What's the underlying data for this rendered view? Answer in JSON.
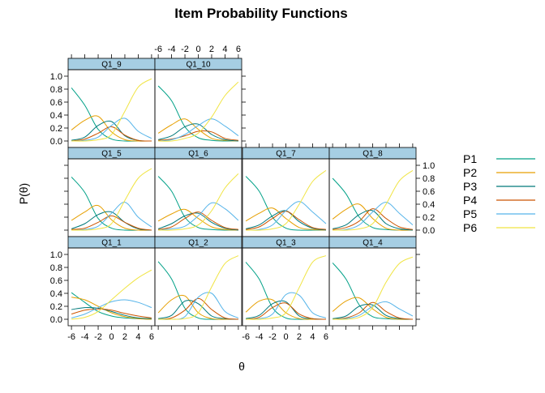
{
  "chart_data": {
    "type": "line",
    "title": "Item Probability Functions",
    "xlabel": "θ",
    "ylabel": "P(θ)",
    "xlim": [
      -6.5,
      6.5
    ],
    "ylim": [
      -0.1,
      1.1
    ],
    "xticks": [
      -6,
      -4,
      -2,
      0,
      2,
      4,
      6
    ],
    "yticks": [
      0.0,
      0.2,
      0.4,
      0.6,
      0.8,
      1.0
    ],
    "legend": {
      "position": "right",
      "entries": [
        {
          "label": "P1",
          "color": "#00A087"
        },
        {
          "label": "P2",
          "color": "#E69F00"
        },
        {
          "label": "P3",
          "color": "#00797A"
        },
        {
          "label": "P4",
          "color": "#CC5500"
        },
        {
          "label": "P5",
          "color": "#56B4E9"
        },
        {
          "label": "P6",
          "color": "#F0E442"
        }
      ]
    },
    "x": [
      -6,
      -4,
      -2,
      0,
      2,
      4,
      6
    ],
    "panels": [
      {
        "name": "Q1_9",
        "series": [
          {
            "values": [
              0.82,
              0.55,
              0.18,
              0.03,
              0.0,
              0.0,
              0.0
            ]
          },
          {
            "values": [
              0.17,
              0.32,
              0.38,
              0.14,
              0.02,
              0.0,
              0.0
            ]
          },
          {
            "values": [
              0.01,
              0.06,
              0.24,
              0.3,
              0.08,
              0.01,
              0.0
            ]
          },
          {
            "values": [
              0.0,
              0.03,
              0.12,
              0.22,
              0.09,
              0.01,
              0.0
            ]
          },
          {
            "values": [
              0.0,
              0.01,
              0.06,
              0.24,
              0.35,
              0.15,
              0.04
            ]
          },
          {
            "values": [
              0.0,
              0.0,
              0.02,
              0.1,
              0.46,
              0.83,
              0.96
            ]
          }
        ]
      },
      {
        "name": "Q1_10",
        "series": [
          {
            "values": [
              0.85,
              0.62,
              0.22,
              0.05,
              0.01,
              0.0,
              0.0
            ]
          },
          {
            "values": [
              0.12,
              0.25,
              0.34,
              0.18,
              0.04,
              0.01,
              0.0
            ]
          },
          {
            "values": [
              0.02,
              0.08,
              0.22,
              0.26,
              0.1,
              0.02,
              0.0
            ]
          },
          {
            "values": [
              0.01,
              0.03,
              0.08,
              0.15,
              0.14,
              0.04,
              0.01
            ]
          },
          {
            "values": [
              0.0,
              0.02,
              0.1,
              0.24,
              0.34,
              0.23,
              0.08
            ]
          },
          {
            "values": [
              0.0,
              0.0,
              0.04,
              0.12,
              0.37,
              0.7,
              0.91
            ]
          }
        ]
      },
      {
        "name": "Q1_5",
        "series": [
          {
            "values": [
              0.82,
              0.58,
              0.18,
              0.03,
              0.0,
              0.0,
              0.0
            ]
          },
          {
            "values": [
              0.15,
              0.28,
              0.38,
              0.16,
              0.03,
              0.0,
              0.0
            ]
          },
          {
            "values": [
              0.02,
              0.1,
              0.24,
              0.28,
              0.12,
              0.02,
              0.0
            ]
          },
          {
            "values": [
              0.01,
              0.03,
              0.12,
              0.22,
              0.12,
              0.03,
              0.0
            ]
          },
          {
            "values": [
              0.0,
              0.01,
              0.06,
              0.26,
              0.43,
              0.2,
              0.05
            ]
          },
          {
            "values": [
              0.0,
              0.0,
              0.02,
              0.1,
              0.46,
              0.8,
              0.95
            ]
          }
        ]
      },
      {
        "name": "Q1_6",
        "series": [
          {
            "values": [
              0.83,
              0.6,
              0.2,
              0.04,
              0.01,
              0.0,
              0.0
            ]
          },
          {
            "values": [
              0.14,
              0.25,
              0.32,
              0.18,
              0.05,
              0.01,
              0.0
            ]
          },
          {
            "values": [
              0.02,
              0.1,
              0.22,
              0.26,
              0.12,
              0.03,
              0.0
            ]
          },
          {
            "values": [
              0.01,
              0.05,
              0.18,
              0.28,
              0.15,
              0.04,
              0.01
            ]
          },
          {
            "values": [
              0.0,
              0.02,
              0.06,
              0.22,
              0.42,
              0.33,
              0.15
            ]
          },
          {
            "values": [
              0.0,
              0.0,
              0.02,
              0.08,
              0.3,
              0.65,
              0.87
            ]
          }
        ]
      },
      {
        "name": "Q1_7",
        "series": [
          {
            "values": [
              0.83,
              0.6,
              0.2,
              0.03,
              0.0,
              0.0,
              0.0
            ]
          },
          {
            "values": [
              0.14,
              0.26,
              0.34,
              0.18,
              0.04,
              0.01,
              0.0
            ]
          },
          {
            "values": [
              0.02,
              0.08,
              0.22,
              0.3,
              0.13,
              0.03,
              0.0
            ]
          },
          {
            "values": [
              0.01,
              0.05,
              0.18,
              0.29,
              0.16,
              0.04,
              0.01
            ]
          },
          {
            "values": [
              0.0,
              0.01,
              0.08,
              0.3,
              0.44,
              0.28,
              0.1
            ]
          },
          {
            "values": [
              0.0,
              0.0,
              0.02,
              0.1,
              0.4,
              0.75,
              0.92
            ]
          }
        ]
      },
      {
        "name": "Q1_8",
        "series": [
          {
            "values": [
              0.8,
              0.56,
              0.2,
              0.04,
              0.01,
              0.0,
              0.0
            ]
          },
          {
            "values": [
              0.17,
              0.32,
              0.4,
              0.18,
              0.03,
              0.0,
              0.0
            ]
          },
          {
            "values": [
              0.02,
              0.08,
              0.24,
              0.3,
              0.1,
              0.02,
              0.0
            ]
          },
          {
            "values": [
              0.01,
              0.04,
              0.14,
              0.33,
              0.18,
              0.05,
              0.01
            ]
          },
          {
            "values": [
              0.0,
              0.01,
              0.08,
              0.28,
              0.43,
              0.26,
              0.08
            ]
          },
          {
            "values": [
              0.0,
              0.0,
              0.02,
              0.1,
              0.4,
              0.76,
              0.92
            ]
          }
        ]
      },
      {
        "name": "Q1_1",
        "series": [
          {
            "values": [
              0.41,
              0.26,
              0.12,
              0.05,
              0.02,
              0.01,
              0.0
            ]
          },
          {
            "values": [
              0.34,
              0.3,
              0.2,
              0.1,
              0.04,
              0.01,
              0.0
            ]
          },
          {
            "values": [
              0.15,
              0.18,
              0.17,
              0.12,
              0.06,
              0.02,
              0.01
            ]
          },
          {
            "values": [
              0.08,
              0.14,
              0.16,
              0.14,
              0.09,
              0.05,
              0.02
            ]
          },
          {
            "values": [
              0.02,
              0.08,
              0.18,
              0.27,
              0.3,
              0.26,
              0.18
            ]
          },
          {
            "values": [
              0.0,
              0.03,
              0.12,
              0.3,
              0.48,
              0.64,
              0.76
            ]
          }
        ]
      },
      {
        "name": "Q1_2",
        "series": [
          {
            "values": [
              0.89,
              0.62,
              0.17,
              0.02,
              0.0,
              0.0,
              0.0
            ]
          },
          {
            "values": [
              0.1,
              0.3,
              0.36,
              0.1,
              0.01,
              0.0,
              0.0
            ]
          },
          {
            "values": [
              0.01,
              0.06,
              0.28,
              0.24,
              0.05,
              0.01,
              0.0
            ]
          },
          {
            "values": [
              0.0,
              0.02,
              0.14,
              0.32,
              0.15,
              0.02,
              0.0
            ]
          },
          {
            "values": [
              0.0,
              0.0,
              0.04,
              0.34,
              0.4,
              0.12,
              0.02
            ]
          },
          {
            "values": [
              0.0,
              0.0,
              0.01,
              0.1,
              0.5,
              0.86,
              0.98
            ]
          }
        ]
      },
      {
        "name": "Q1_3",
        "series": [
          {
            "values": [
              0.88,
              0.62,
              0.18,
              0.02,
              0.0,
              0.0,
              0.0
            ]
          },
          {
            "values": [
              0.11,
              0.28,
              0.3,
              0.1,
              0.01,
              0.0,
              0.0
            ]
          },
          {
            "values": [
              0.01,
              0.06,
              0.24,
              0.27,
              0.05,
              0.01,
              0.0
            ]
          },
          {
            "values": [
              0.0,
              0.03,
              0.18,
              0.25,
              0.08,
              0.01,
              0.0
            ]
          },
          {
            "values": [
              0.0,
              0.01,
              0.08,
              0.38,
              0.37,
              0.1,
              0.02
            ]
          },
          {
            "values": [
              0.0,
              0.0,
              0.02,
              0.1,
              0.49,
              0.88,
              0.98
            ]
          }
        ]
      },
      {
        "name": "Q1_4",
        "series": [
          {
            "values": [
              0.87,
              0.62,
              0.22,
              0.04,
              0.01,
              0.0,
              0.0
            ]
          },
          {
            "values": [
              0.12,
              0.28,
              0.33,
              0.16,
              0.03,
              0.0,
              0.0
            ]
          },
          {
            "values": [
              0.01,
              0.05,
              0.2,
              0.22,
              0.06,
              0.01,
              0.0
            ]
          },
          {
            "values": [
              0.0,
              0.02,
              0.1,
              0.26,
              0.12,
              0.02,
              0.0
            ]
          },
          {
            "values": [
              0.0,
              0.01,
              0.06,
              0.2,
              0.27,
              0.16,
              0.05
            ]
          },
          {
            "values": [
              0.0,
              0.0,
              0.03,
              0.18,
              0.57,
              0.86,
              0.96
            ]
          }
        ]
      }
    ]
  }
}
